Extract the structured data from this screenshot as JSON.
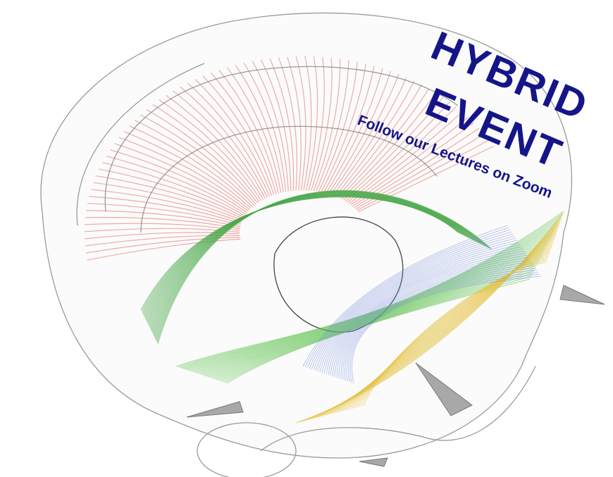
{
  "banner": {
    "line1": "HYBRID",
    "line2": "EVENT",
    "subtitle": "Follow our Lectures on Zoom"
  }
}
